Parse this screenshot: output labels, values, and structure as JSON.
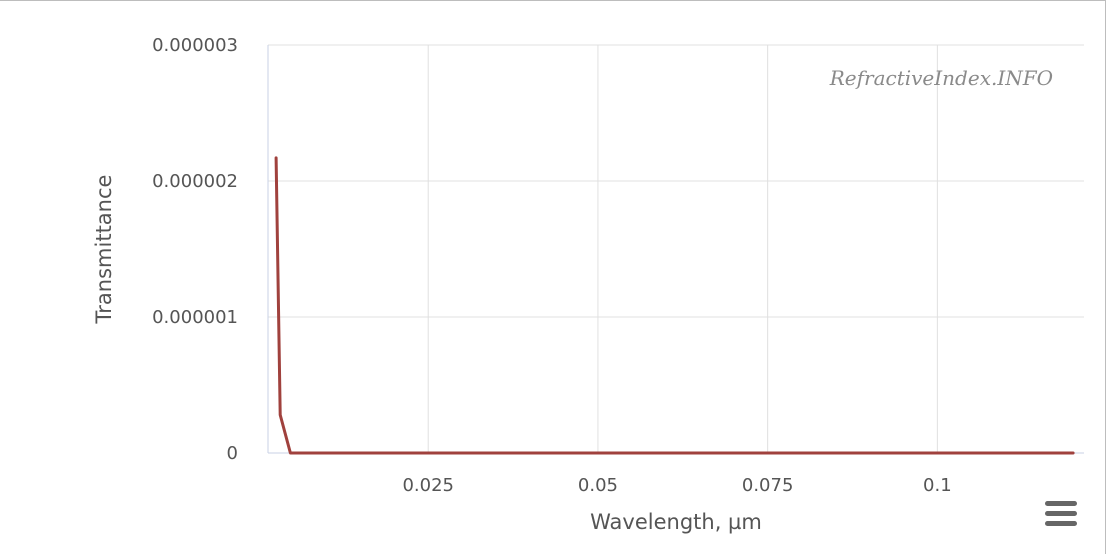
{
  "chart_data": {
    "type": "line",
    "title": "",
    "xlabel": "Wavelength, µm",
    "ylabel": "Transmittance",
    "xlim": [
      0.0014,
      0.1216
    ],
    "ylim": [
      0,
      3e-06
    ],
    "x_ticks": [
      {
        "value": 0.025,
        "label": "0.025"
      },
      {
        "value": 0.05,
        "label": "0.05"
      },
      {
        "value": 0.075,
        "label": "0.075"
      },
      {
        "value": 0.1,
        "label": "0.1"
      }
    ],
    "y_ticks": [
      {
        "value": 0,
        "label": "0"
      },
      {
        "value": 1e-06,
        "label": "0.000001"
      },
      {
        "value": 2e-06,
        "label": "0.000002"
      },
      {
        "value": 3e-06,
        "label": "0.000003"
      }
    ],
    "grid": true,
    "series": [
      {
        "color": "#a0413d",
        "points": [
          [
            0.0026,
            2.17e-06
          ],
          [
            0.0032,
            2.8e-07
          ],
          [
            0.0047,
            0.0
          ],
          [
            0.01,
            0.0
          ],
          [
            0.03,
            0.0
          ],
          [
            0.06,
            0.0
          ],
          [
            0.09,
            0.0
          ],
          [
            0.12,
            0.0
          ]
        ]
      }
    ],
    "credit": "RefractiveIndex.INFO"
  },
  "ui": {
    "menu_icon": "hamburger-menu-icon"
  }
}
